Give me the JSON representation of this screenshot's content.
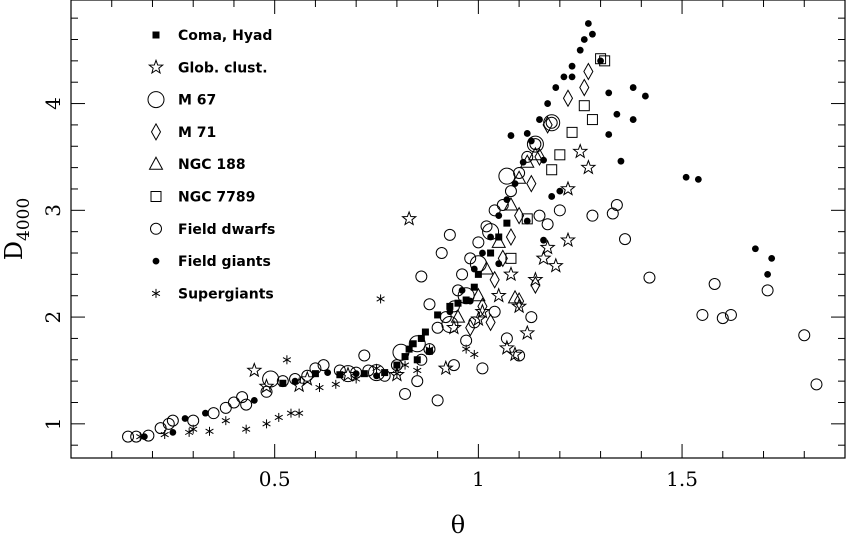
{
  "chart_data": {
    "type": "scatter",
    "title": "",
    "xlabel": "θ",
    "ylabel_main": "D",
    "ylabel_sub": "4000",
    "xlim": [
      0.0,
      1.9
    ],
    "ylim": [
      0.68,
      4.97
    ],
    "x_ticks": [
      0.5,
      1.0,
      1.5
    ],
    "x_tick_labels": [
      "0.5",
      "1",
      "1.5"
    ],
    "y_ticks": [
      1,
      2,
      3,
      4
    ],
    "y_tick_labels": [
      "1",
      "2",
      "3",
      "4"
    ],
    "grid": false,
    "legend_position": "top-left",
    "series": [
      {
        "name": "Coma, Hyad",
        "marker": "filled-square",
        "points": [
          [
            0.52,
            1.38
          ],
          [
            0.6,
            1.47
          ],
          [
            0.66,
            1.46
          ],
          [
            0.72,
            1.47
          ],
          [
            0.77,
            1.48
          ],
          [
            0.8,
            1.55
          ],
          [
            0.82,
            1.63
          ],
          [
            0.83,
            1.7
          ],
          [
            0.84,
            1.75
          ],
          [
            0.86,
            1.8
          ],
          [
            0.87,
            1.86
          ],
          [
            0.9,
            2.02
          ],
          [
            0.93,
            2.1
          ],
          [
            0.95,
            2.13
          ],
          [
            0.97,
            2.16
          ],
          [
            0.99,
            2.28
          ],
          [
            1.0,
            2.4
          ],
          [
            1.03,
            2.6
          ],
          [
            1.05,
            2.75
          ],
          [
            1.07,
            2.88
          ],
          [
            0.85,
            1.6
          ],
          [
            0.88,
            1.68
          ]
        ]
      },
      {
        "name": "Glob. clust.",
        "marker": "open-star",
        "points": [
          [
            0.83,
            2.92
          ],
          [
            0.45,
            1.5
          ],
          [
            0.48,
            1.35
          ],
          [
            0.56,
            1.36
          ],
          [
            0.58,
            1.42
          ],
          [
            0.68,
            1.46
          ],
          [
            0.8,
            1.46
          ],
          [
            0.92,
            1.52
          ],
          [
            0.94,
            1.9
          ],
          [
            1.0,
            1.98
          ],
          [
            1.01,
            2.05
          ],
          [
            1.05,
            2.2
          ],
          [
            1.08,
            2.4
          ],
          [
            1.1,
            2.1
          ],
          [
            1.12,
            1.85
          ],
          [
            1.14,
            2.35
          ],
          [
            1.16,
            2.55
          ],
          [
            1.17,
            2.65
          ],
          [
            1.19,
            2.48
          ],
          [
            1.22,
            2.72
          ],
          [
            1.22,
            3.2
          ],
          [
            1.25,
            3.55
          ],
          [
            1.27,
            3.4
          ],
          [
            1.07,
            1.71
          ],
          [
            1.09,
            1.65
          ]
        ]
      },
      {
        "name": "M 67",
        "marker": "large-open-circle",
        "points": [
          [
            0.49,
            1.42
          ],
          [
            0.68,
            1.47
          ],
          [
            0.75,
            1.48
          ],
          [
            0.81,
            1.67
          ],
          [
            0.85,
            1.75
          ],
          [
            0.93,
            1.93
          ],
          [
            0.97,
            2.2
          ],
          [
            1.0,
            2.5
          ],
          [
            1.03,
            2.8
          ],
          [
            1.07,
            3.32
          ],
          [
            1.14,
            3.62
          ],
          [
            1.18,
            3.82
          ]
        ]
      },
      {
        "name": "M 71",
        "marker": "open-diamond",
        "points": [
          [
            0.98,
            1.9
          ],
          [
            1.01,
            2.1
          ],
          [
            1.04,
            2.35
          ],
          [
            1.06,
            2.55
          ],
          [
            1.08,
            2.75
          ],
          [
            1.1,
            2.95
          ],
          [
            1.13,
            3.25
          ],
          [
            1.15,
            3.5
          ],
          [
            1.17,
            3.8
          ],
          [
            1.22,
            4.05
          ],
          [
            1.26,
            4.15
          ],
          [
            1.27,
            4.3
          ],
          [
            1.1,
            2.15
          ],
          [
            1.14,
            2.3
          ],
          [
            1.03,
            1.95
          ]
        ]
      },
      {
        "name": "NGC 188",
        "marker": "open-triangle",
        "points": [
          [
            0.95,
            2.0
          ],
          [
            1.0,
            2.2
          ],
          [
            1.02,
            2.45
          ],
          [
            1.05,
            2.7
          ],
          [
            1.08,
            3.05
          ],
          [
            1.1,
            3.3
          ],
          [
            1.12,
            3.45
          ],
          [
            1.14,
            3.52
          ],
          [
            1.09,
            2.18
          ]
        ]
      },
      {
        "name": "NGC 7789",
        "marker": "open-square",
        "points": [
          [
            1.08,
            2.55
          ],
          [
            1.12,
            2.92
          ],
          [
            1.18,
            3.38
          ],
          [
            1.2,
            3.52
          ],
          [
            1.23,
            3.73
          ],
          [
            1.26,
            3.98
          ],
          [
            1.28,
            3.85
          ],
          [
            1.3,
            4.42
          ],
          [
            1.31,
            4.4
          ]
        ]
      },
      {
        "name": "Field dwarfs",
        "marker": "open-circle",
        "points": [
          [
            0.14,
            0.88
          ],
          [
            0.16,
            0.88
          ],
          [
            0.19,
            0.89
          ],
          [
            0.22,
            0.96
          ],
          [
            0.24,
            1.0
          ],
          [
            0.25,
            1.03
          ],
          [
            0.3,
            1.03
          ],
          [
            0.35,
            1.1
          ],
          [
            0.38,
            1.15
          ],
          [
            0.4,
            1.2
          ],
          [
            0.42,
            1.25
          ],
          [
            0.43,
            1.18
          ],
          [
            0.48,
            1.3
          ],
          [
            0.52,
            1.4
          ],
          [
            0.55,
            1.42
          ],
          [
            0.58,
            1.45
          ],
          [
            0.6,
            1.52
          ],
          [
            0.62,
            1.55
          ],
          [
            0.66,
            1.5
          ],
          [
            0.7,
            1.48
          ],
          [
            0.73,
            1.5
          ],
          [
            0.77,
            1.45
          ],
          [
            0.8,
            1.55
          ],
          [
            0.82,
            1.28
          ],
          [
            0.85,
            1.4
          ],
          [
            0.86,
            1.6
          ],
          [
            0.88,
            1.7
          ],
          [
            0.9,
            1.9
          ],
          [
            0.92,
            2.0
          ],
          [
            0.94,
            2.1
          ],
          [
            0.95,
            2.25
          ],
          [
            0.96,
            2.4
          ],
          [
            0.98,
            2.55
          ],
          [
            1.0,
            2.7
          ],
          [
            1.02,
            2.85
          ],
          [
            1.04,
            3.0
          ],
          [
            1.06,
            3.05
          ],
          [
            1.08,
            3.18
          ],
          [
            1.1,
            3.35
          ],
          [
            1.12,
            3.5
          ],
          [
            1.14,
            3.62
          ],
          [
            1.18,
            3.82
          ],
          [
            0.9,
            1.22
          ],
          [
            0.94,
            1.55
          ],
          [
            0.97,
            1.78
          ],
          [
            0.99,
            1.95
          ],
          [
            1.01,
            1.52
          ],
          [
            1.04,
            2.05
          ],
          [
            1.07,
            1.8
          ],
          [
            1.1,
            1.64
          ],
          [
            1.13,
            2.0
          ],
          [
            1.15,
            2.95
          ],
          [
            1.17,
            2.87
          ],
          [
            1.2,
            3.0
          ],
          [
            1.28,
            2.95
          ],
          [
            1.33,
            2.97
          ],
          [
            1.34,
            3.05
          ],
          [
            1.36,
            2.73
          ],
          [
            1.42,
            2.37
          ],
          [
            1.55,
            2.02
          ],
          [
            1.58,
            2.31
          ],
          [
            1.6,
            1.99
          ],
          [
            1.62,
            2.02
          ],
          [
            1.71,
            2.25
          ],
          [
            1.8,
            1.83
          ],
          [
            1.83,
            1.37
          ],
          [
            0.72,
            1.64
          ],
          [
            0.86,
            2.38
          ],
          [
            0.88,
            2.12
          ],
          [
            0.91,
            2.6
          ],
          [
            0.93,
            2.77
          ]
        ]
      },
      {
        "name": "Field giants",
        "marker": "filled-circle",
        "points": [
          [
            0.18,
            0.88
          ],
          [
            0.25,
            0.92
          ],
          [
            0.28,
            1.05
          ],
          [
            0.33,
            1.1
          ],
          [
            0.45,
            1.22
          ],
          [
            0.55,
            1.4
          ],
          [
            0.63,
            1.48
          ],
          [
            0.7,
            1.47
          ],
          [
            0.75,
            1.45
          ],
          [
            0.86,
            1.8
          ],
          [
            0.93,
            2.05
          ],
          [
            0.96,
            2.25
          ],
          [
            0.99,
            2.45
          ],
          [
            1.01,
            2.6
          ],
          [
            1.03,
            2.75
          ],
          [
            1.05,
            2.95
          ],
          [
            1.07,
            3.1
          ],
          [
            1.09,
            3.25
          ],
          [
            1.11,
            3.45
          ],
          [
            1.13,
            3.65
          ],
          [
            1.15,
            3.85
          ],
          [
            1.17,
            4.0
          ],
          [
            1.19,
            4.15
          ],
          [
            1.21,
            4.25
          ],
          [
            1.23,
            4.35
          ],
          [
            1.25,
            4.5
          ],
          [
            1.26,
            4.6
          ],
          [
            1.27,
            4.75
          ],
          [
            1.28,
            4.65
          ],
          [
            1.3,
            4.4
          ],
          [
            1.32,
            4.1
          ],
          [
            1.34,
            3.9
          ],
          [
            1.35,
            3.46
          ],
          [
            1.38,
            4.15
          ],
          [
            1.41,
            4.07
          ],
          [
            1.38,
            3.85
          ],
          [
            1.32,
            3.71
          ],
          [
            1.08,
            3.7
          ],
          [
            1.12,
            3.72
          ],
          [
            1.16,
            3.47
          ],
          [
            1.18,
            3.13
          ],
          [
            1.2,
            3.18
          ],
          [
            1.51,
            3.31
          ],
          [
            1.54,
            3.29
          ],
          [
            1.68,
            2.64
          ],
          [
            1.71,
            2.4
          ],
          [
            1.72,
            2.55
          ],
          [
            1.16,
            2.72
          ],
          [
            1.12,
            2.9
          ],
          [
            1.05,
            2.5
          ],
          [
            0.98,
            2.15
          ],
          [
            1.23,
            4.25
          ]
        ]
      },
      {
        "name": "Supergiants",
        "marker": "asterisk",
        "points": [
          [
            0.17,
            0.88
          ],
          [
            0.23,
            0.9
          ],
          [
            0.29,
            0.92
          ],
          [
            0.3,
            0.95
          ],
          [
            0.34,
            0.93
          ],
          [
            0.38,
            1.03
          ],
          [
            0.43,
            0.95
          ],
          [
            0.48,
            1.0
          ],
          [
            0.51,
            1.06
          ],
          [
            0.54,
            1.1
          ],
          [
            0.56,
            1.1
          ],
          [
            0.53,
            1.6
          ],
          [
            0.61,
            1.34
          ],
          [
            0.65,
            1.37
          ],
          [
            0.7,
            1.42
          ],
          [
            0.75,
            1.52
          ],
          [
            0.76,
            2.17
          ],
          [
            0.82,
            1.55
          ],
          [
            0.85,
            1.5
          ],
          [
            0.88,
            1.7
          ],
          [
            0.97,
            1.7
          ],
          [
            0.99,
            1.65
          ],
          [
            0.8,
            1.47
          ]
        ]
      }
    ]
  }
}
